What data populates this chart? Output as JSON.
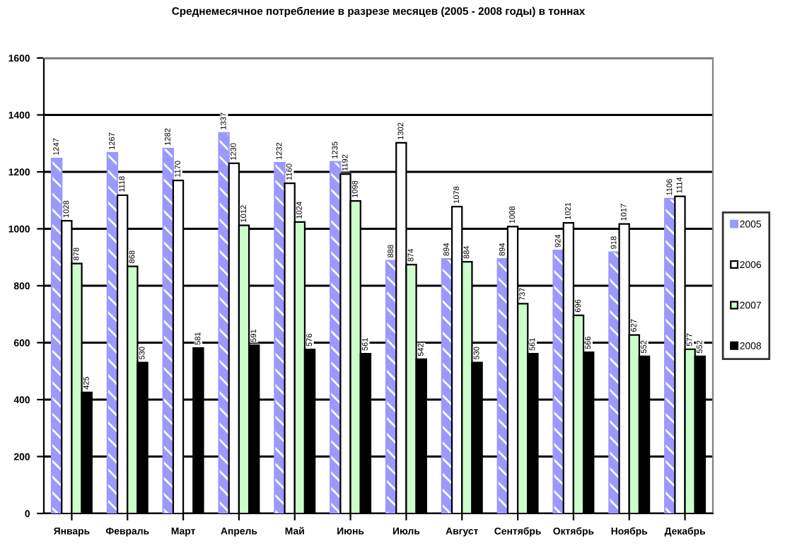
{
  "chart_data": {
    "type": "bar",
    "title": "Среднемесячное потребление в разрезе месяцев (2005 - 2008 годы) в тоннах",
    "categories": [
      "Январь",
      "Февраль",
      "Март",
      "Апрель",
      "Май",
      "Июнь",
      "Июль",
      "Август",
      "Сентябрь",
      "Октябрь",
      "Ноябрь",
      "Декабрь"
    ],
    "series": [
      {
        "name": "2005",
        "color": "#9999ff",
        "values": [
          1247,
          1267,
          1282,
          1337,
          1232,
          1235,
          888,
          894,
          894,
          924,
          918,
          1106
        ]
      },
      {
        "name": "2006",
        "color": "#ffffff",
        "values": [
          1028,
          1118,
          1170,
          1230,
          1160,
          1192,
          1302,
          1078,
          1008,
          1021,
          1017,
          1114
        ]
      },
      {
        "name": "2007",
        "color": "#ccffcc",
        "values": [
          878,
          868,
          null,
          1012,
          1024,
          1098,
          874,
          884,
          737,
          696,
          627,
          577
        ]
      },
      {
        "name": "2008",
        "color": "#000000",
        "values": [
          425,
          530,
          581,
          591,
          576,
          561,
          542,
          530,
          561,
          566,
          552,
          552
        ]
      }
    ],
    "ylim": [
      0,
      1600
    ],
    "yticks": [
      0,
      200,
      400,
      600,
      800,
      1000,
      1200,
      1400,
      1600
    ],
    "grid": "y",
    "legend": "right",
    "data_labels": true
  }
}
